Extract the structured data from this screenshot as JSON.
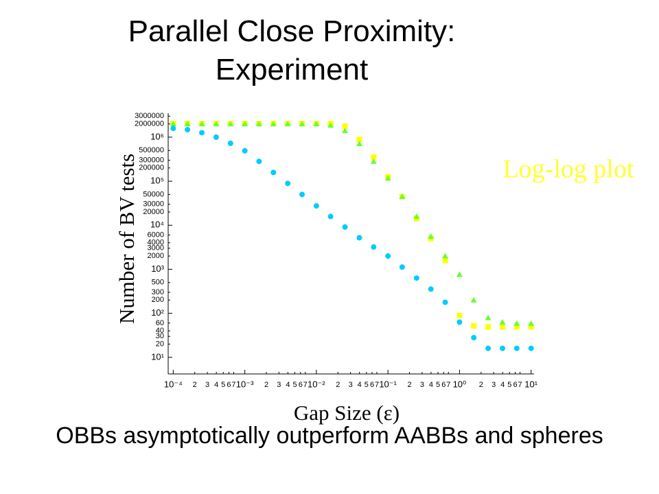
{
  "title": "Parallel Close Proximity: Experiment",
  "caption": "OBBs asymptotically outperform AABBs and spheres",
  "chart_data": {
    "type": "scatter",
    "xlabel": "Gap Size (ε)",
    "ylabel": "Number of BV tests",
    "annotation": {
      "text": "Log-log plot",
      "color": "#ffff33"
    },
    "xscale": "log",
    "yscale": "log",
    "xlim": [
      8.5e-05,
      11
    ],
    "ylim": [
      4.2,
      3500000
    ],
    "xticks": [
      {
        "value": 0.0001,
        "label": "10⁻⁴"
      },
      {
        "value": 0.0002,
        "label": "2"
      },
      {
        "value": 0.0003,
        "label": "3"
      },
      {
        "value": 0.0004,
        "label": "4"
      },
      {
        "value": 0.0005,
        "label": "5"
      },
      {
        "value": 0.0006,
        "label": "6"
      },
      {
        "value": 0.0007,
        "label": "7"
      },
      {
        "value": 0.001,
        "label": "10⁻³"
      },
      {
        "value": 0.002,
        "label": "2"
      },
      {
        "value": 0.003,
        "label": "3"
      },
      {
        "value": 0.004,
        "label": "4"
      },
      {
        "value": 0.005,
        "label": "5"
      },
      {
        "value": 0.006,
        "label": "6"
      },
      {
        "value": 0.007,
        "label": "7"
      },
      {
        "value": 0.01,
        "label": "10⁻²"
      },
      {
        "value": 0.02,
        "label": "2"
      },
      {
        "value": 0.03,
        "label": "3"
      },
      {
        "value": 0.04,
        "label": "4"
      },
      {
        "value": 0.05,
        "label": "5"
      },
      {
        "value": 0.06,
        "label": "6"
      },
      {
        "value": 0.07,
        "label": "7"
      },
      {
        "value": 0.1,
        "label": "10⁻¹"
      },
      {
        "value": 0.2,
        "label": "2"
      },
      {
        "value": 0.3,
        "label": "3"
      },
      {
        "value": 0.4,
        "label": "4"
      },
      {
        "value": 0.5,
        "label": "5"
      },
      {
        "value": 0.6,
        "label": "6"
      },
      {
        "value": 0.7,
        "label": "7"
      },
      {
        "value": 1,
        "label": "10⁰"
      },
      {
        "value": 2,
        "label": "2"
      },
      {
        "value": 3,
        "label": "3"
      },
      {
        "value": 4,
        "label": "4"
      },
      {
        "value": 5,
        "label": "5"
      },
      {
        "value": 6,
        "label": "6"
      },
      {
        "value": 7,
        "label": "7"
      },
      {
        "value": 10,
        "label": "10¹"
      }
    ],
    "yticks": [
      {
        "value": 10,
        "label": "10¹"
      },
      20,
      30,
      40,
      60,
      {
        "value": 100,
        "label": "10²"
      },
      200,
      300,
      500,
      {
        "value": 1000,
        "label": "10³"
      },
      2000,
      3000,
      4000,
      6000,
      {
        "value": 10000,
        "label": "10⁴"
      },
      20000,
      30000,
      50000,
      {
        "value": 100000,
        "label": "10⁵"
      },
      200000,
      300000,
      500000,
      {
        "value": 1000000,
        "label": "10⁶"
      },
      2000000,
      3000000
    ],
    "x": [
      0.0001,
      0.000158,
      0.000251,
      0.000398,
      0.000631,
      0.001,
      0.00158,
      0.00251,
      0.00398,
      0.00631,
      0.01,
      0.0158,
      0.0251,
      0.0398,
      0.0631,
      0.1,
      0.158,
      0.251,
      0.398,
      0.631,
      1,
      1.58,
      2.51,
      3.98,
      6.31,
      10
    ],
    "series": [
      {
        "color": "#ffff00",
        "marker": "square",
        "values": [
          2040000,
          2040000,
          2040000,
          2040000,
          2040000,
          2040000,
          2040000,
          2040000,
          2040000,
          2040000,
          2040000,
          2040000,
          1780000,
          890000,
          355000,
          126000,
          44700,
          14100,
          5000,
          1580,
          89,
          52,
          49,
          49,
          49,
          49
        ]
      },
      {
        "color": "#66ff33",
        "marker": "triangle",
        "values": [
          2000000,
          2000000,
          2000000,
          2000000,
          2000000,
          2000000,
          2000000,
          2000000,
          2000000,
          2000000,
          2000000,
          1860000,
          1410000,
          710000,
          282000,
          117000,
          44700,
          15800,
          5600,
          2000,
          760,
          200,
          79,
          63,
          59,
          59
        ]
      },
      {
        "color": "#00ccff",
        "marker": "circle",
        "values": [
          1580000,
          1480000,
          1260000,
          1000000,
          724000,
          490000,
          282000,
          158000,
          89000,
          50000,
          27500,
          15800,
          9100,
          5200,
          3200,
          2000,
          1120,
          630,
          355,
          178,
          63,
          28,
          16,
          16,
          16,
          16
        ]
      }
    ]
  }
}
